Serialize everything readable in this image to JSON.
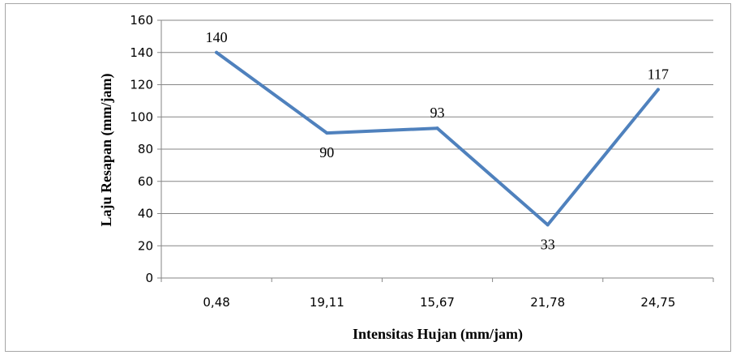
{
  "chart_data": {
    "type": "line",
    "title": "",
    "xlabel": "Intensitas Hujan (mm/jam)",
    "ylabel": "Laju Resapan  (mm/jam)",
    "categories": [
      "0,48",
      "19,11",
      "15,67",
      "21,78",
      "24,75"
    ],
    "series": [
      {
        "values": [
          140,
          90,
          93,
          33,
          117
        ]
      }
    ],
    "data_labels": [
      "140",
      "90",
      "93",
      "33",
      "117"
    ],
    "ylim": [
      0,
      160
    ],
    "yticks": [
      0,
      20,
      40,
      60,
      80,
      100,
      120,
      140,
      160
    ],
    "grid": true,
    "legend": "none",
    "line_color": "#4f81bd",
    "grid_color": "#868686"
  }
}
